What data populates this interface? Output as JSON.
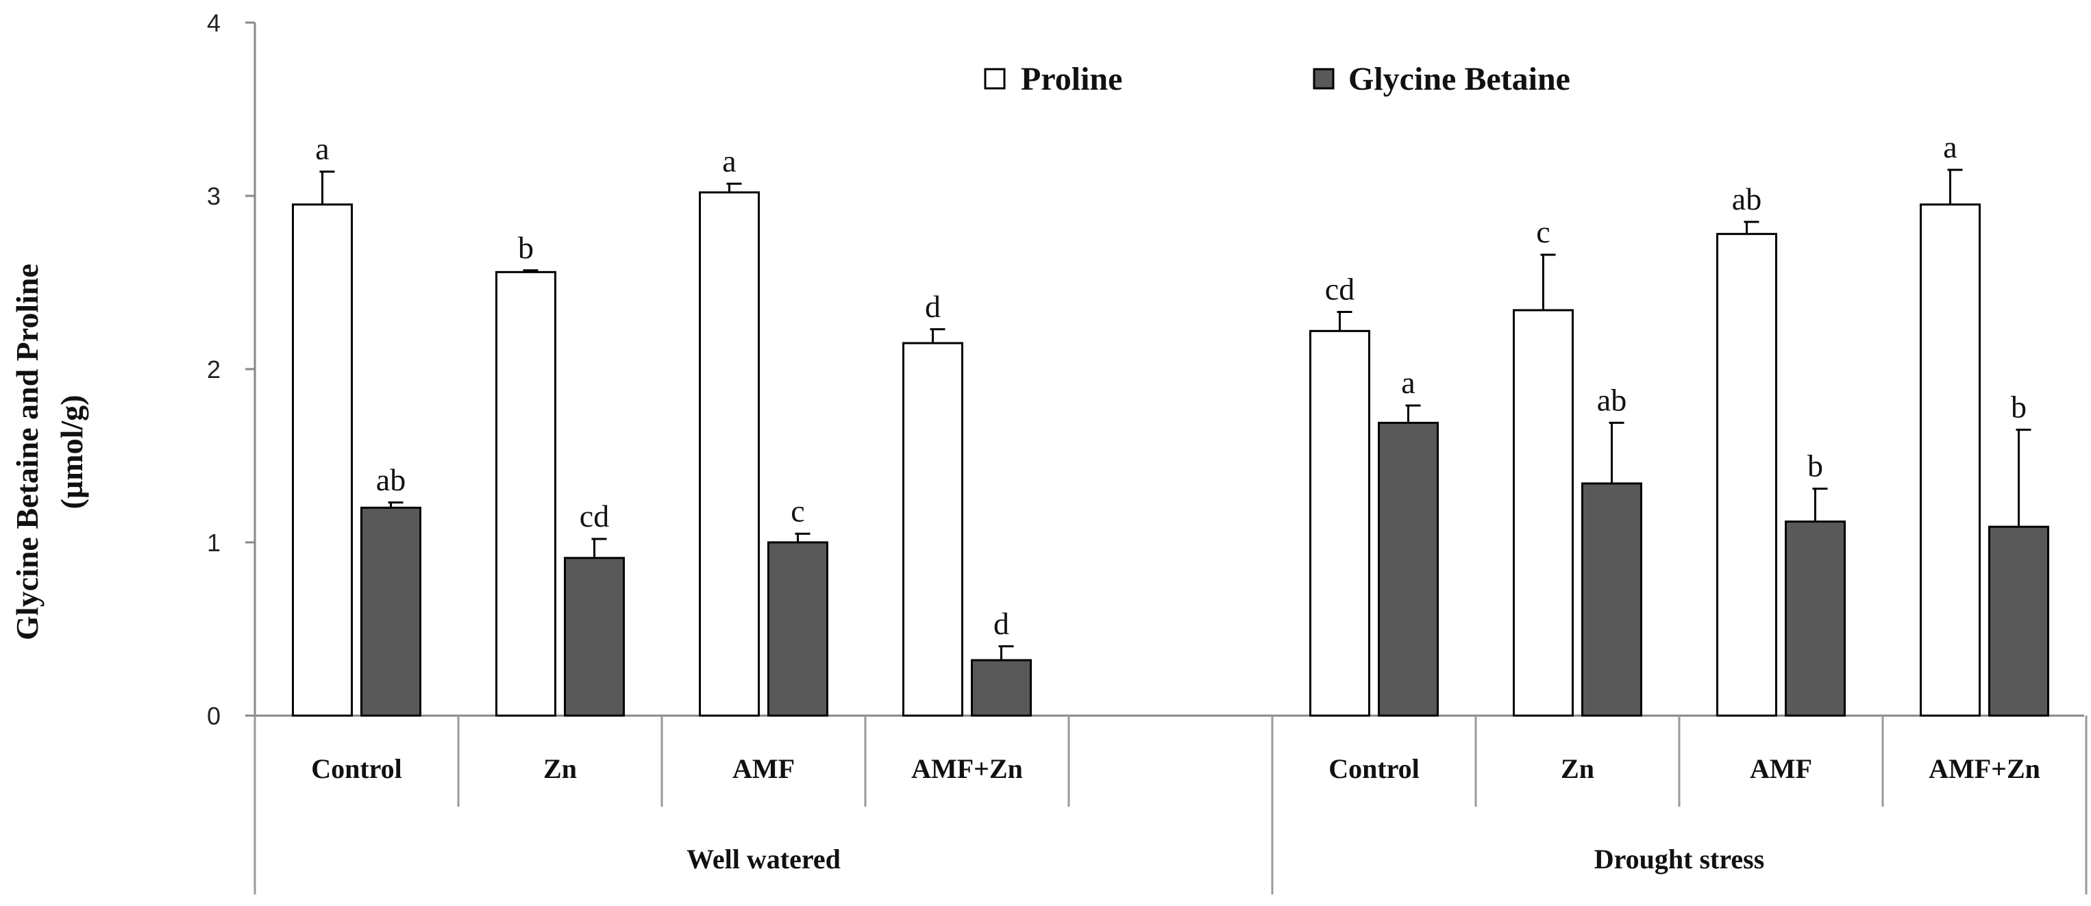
{
  "chart_data": {
    "type": "bar",
    "ylabel_line1": "Glycine Betaine and Proline",
    "ylabel_line2": "(µmol/g)",
    "ylim": [
      0,
      4
    ],
    "yticks": [
      "0",
      "1",
      "2",
      "3",
      "4"
    ],
    "legend": [
      "Proline",
      "Glycine Betaine"
    ],
    "groups": [
      {
        "name": "Well watered",
        "categories": [
          "Control",
          "Zn",
          "AMF",
          "AMF+Zn"
        ],
        "proline": [
          2.95,
          2.56,
          3.02,
          2.15
        ],
        "proline_err": [
          0.19,
          0.01,
          0.05,
          0.08
        ],
        "proline_letters": [
          "a",
          "b",
          "a",
          "d"
        ],
        "glycine_betaine": [
          1.2,
          0.91,
          1.0,
          0.32
        ],
        "glycine_betaine_err": [
          0.03,
          0.11,
          0.05,
          0.08
        ],
        "glycine_betaine_letters": [
          "ab",
          "cd",
          "c",
          "d"
        ]
      },
      {
        "name": "Drought stress",
        "categories": [
          "Control",
          "Zn",
          "AMF",
          "AMF+Zn"
        ],
        "proline": [
          2.22,
          2.34,
          2.78,
          2.95
        ],
        "proline_err": [
          0.11,
          0.32,
          0.07,
          0.2
        ],
        "proline_letters": [
          "cd",
          "c",
          "ab",
          "a"
        ],
        "glycine_betaine": [
          1.69,
          1.34,
          1.12,
          1.09
        ],
        "glycine_betaine_err": [
          0.1,
          0.35,
          0.19,
          0.56
        ],
        "glycine_betaine_letters": [
          "a",
          "ab",
          "b",
          "b"
        ]
      }
    ],
    "colors": {
      "proline_fill": "#ffffff",
      "glycine_betaine_fill": "#595959",
      "stroke": "#000000"
    }
  }
}
